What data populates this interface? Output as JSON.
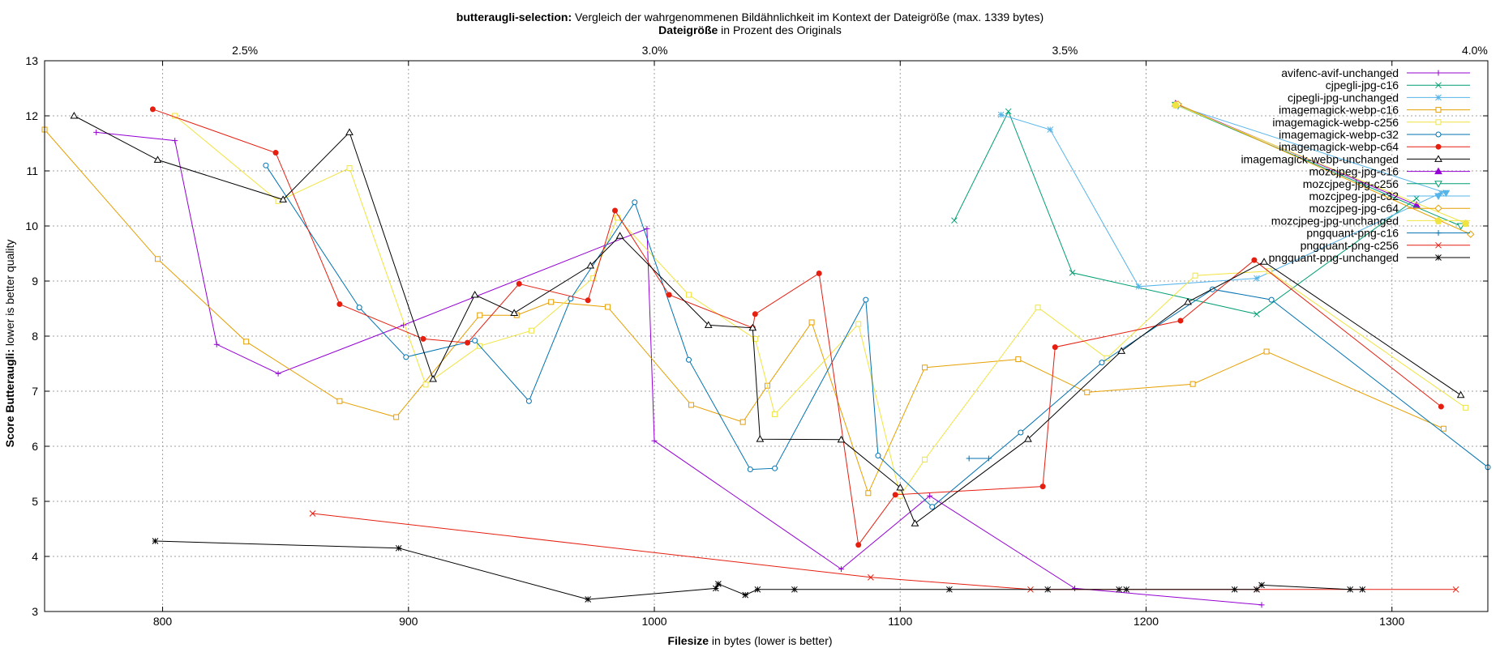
{
  "chart_data": {
    "type": "line",
    "title_bold": "butteraugli-selection:",
    "title_rest": " Vergleich der wahrgenommenen Bildähnlichkeit im Kontext der Dateigröße (max. 1339 bytes)",
    "x2label_bold": "Dateigröße",
    "x2label_rest": " in Prozent des Originals",
    "xlabel_bold": "Filesize",
    "xlabel_rest": " in bytes (lower is better)",
    "ylabel_bold": "Score Butteraugli:",
    "ylabel_rest": " lower is better quality",
    "xlim": [
      752,
      1339
    ],
    "ylim": [
      3,
      13
    ],
    "x_ticks": [
      800,
      900,
      1000,
      1100,
      1200,
      1300
    ],
    "y_ticks": [
      3,
      4,
      5,
      6,
      7,
      8,
      9,
      10,
      11,
      12,
      13
    ],
    "x2_ticks": [
      {
        "label": "2.5%",
        "x": 833.5
      },
      {
        "label": "3.0%",
        "x": 1000.2
      },
      {
        "label": "3.5%",
        "x": 1167
      },
      {
        "label": "4.0%",
        "x": 1333.7
      }
    ],
    "grid": true,
    "legend_position": "top-right",
    "series": [
      {
        "name": "avifenc-avif-unchanged",
        "color": "#9400d3",
        "marker": "plus",
        "points": [
          [
            773,
            11.7
          ],
          [
            805,
            11.55
          ],
          [
            822,
            7.85
          ],
          [
            847,
            7.32
          ],
          [
            898,
            8.2
          ],
          [
            997,
            9.95
          ],
          [
            1000,
            6.1
          ],
          [
            1076,
            3.77
          ],
          [
            1112,
            5.1
          ],
          [
            1171,
            3.42
          ],
          [
            1247,
            3.12
          ]
        ]
      },
      {
        "name": "cjpegli-jpg-c16",
        "color": "#009e73",
        "marker": "cross",
        "points": [
          [
            1122,
            10.1
          ],
          [
            1144,
            12.08
          ],
          [
            1170,
            9.15
          ],
          [
            1245,
            8.4
          ],
          [
            1310,
            10.5
          ]
        ]
      },
      {
        "name": "cjpegli-jpg-unchanged",
        "color": "#56b4e9",
        "marker": "asterisk",
        "points": [
          [
            1141,
            12.02
          ],
          [
            1161,
            11.75
          ],
          [
            1197,
            8.9
          ],
          [
            1245,
            9.05
          ],
          [
            1320,
            10.6
          ]
        ]
      },
      {
        "name": "imagemagick-webp-c16",
        "color": "#e69f00",
        "marker": "square",
        "points": [
          [
            752,
            11.75
          ],
          [
            798,
            9.4
          ],
          [
            834,
            7.9
          ],
          [
            872,
            6.82
          ],
          [
            895,
            6.53
          ],
          [
            929,
            8.38
          ],
          [
            944,
            8.38
          ],
          [
            958,
            8.62
          ],
          [
            981,
            8.53
          ],
          [
            1015,
            6.75
          ],
          [
            1036,
            6.44
          ],
          [
            1046,
            7.1
          ],
          [
            1064,
            8.25
          ],
          [
            1087,
            5.15
          ],
          [
            1110,
            7.43
          ],
          [
            1148,
            7.58
          ],
          [
            1176,
            6.98
          ],
          [
            1219,
            7.13
          ],
          [
            1249,
            7.72
          ],
          [
            1321,
            6.32
          ]
        ]
      },
      {
        "name": "imagemagick-webp-c256",
        "color": "#f0e442",
        "marker": "square",
        "points": [
          [
            805,
            12.0
          ],
          [
            847,
            10.45
          ],
          [
            876,
            11.05
          ],
          [
            907,
            7.12
          ],
          [
            929,
            7.82
          ],
          [
            950,
            8.1
          ],
          [
            975,
            9.05
          ],
          [
            985,
            10.15
          ],
          [
            1014,
            8.75
          ],
          [
            1041,
            7.95
          ],
          [
            1049,
            6.58
          ],
          [
            1083,
            8.22
          ],
          [
            1100,
            5.1
          ],
          [
            1110,
            5.76
          ],
          [
            1156,
            8.52
          ],
          [
            1184,
            7.6
          ],
          [
            1220,
            9.1
          ],
          [
            1250,
            9.18
          ],
          [
            1330,
            6.7
          ]
        ]
      },
      {
        "name": "imagemagick-webp-c32",
        "color": "#0072b2",
        "marker": "circle",
        "points": [
          [
            842,
            11.1
          ],
          [
            880,
            8.52
          ],
          [
            899,
            7.62
          ],
          [
            927,
            7.92
          ],
          [
            949,
            6.82
          ],
          [
            966,
            8.68
          ],
          [
            992,
            10.43
          ],
          [
            1014,
            7.57
          ],
          [
            1039,
            5.58
          ],
          [
            1049,
            5.6
          ],
          [
            1086,
            8.66
          ],
          [
            1091,
            5.83
          ],
          [
            1113,
            4.9
          ],
          [
            1149,
            6.25
          ],
          [
            1182,
            7.52
          ],
          [
            1227,
            8.85
          ],
          [
            1251,
            8.66
          ],
          [
            1339,
            5.62
          ]
        ]
      },
      {
        "name": "imagemagick-webp-c64",
        "color": "#e51e10",
        "marker": "dot",
        "points": [
          [
            796,
            12.12
          ],
          [
            846,
            11.33
          ],
          [
            872,
            8.58
          ],
          [
            906,
            7.95
          ],
          [
            924,
            7.88
          ],
          [
            945,
            8.95
          ],
          [
            973,
            8.65
          ],
          [
            984,
            10.28
          ],
          [
            1006,
            8.75
          ],
          [
            1040,
            8.15
          ],
          [
            1041,
            8.4
          ],
          [
            1067,
            9.14
          ],
          [
            1083,
            4.21
          ],
          [
            1098,
            5.12
          ],
          [
            1158,
            5.27
          ],
          [
            1163,
            7.8
          ],
          [
            1214,
            8.28
          ],
          [
            1244,
            9.38
          ],
          [
            1320,
            6.72
          ]
        ]
      },
      {
        "name": "imagemagick-webp-unchanged",
        "color": "#000000",
        "marker": "triangle",
        "points": [
          [
            764,
            12.0
          ],
          [
            798,
            11.2
          ],
          [
            849,
            10.48
          ],
          [
            876,
            11.7
          ],
          [
            910,
            7.22
          ],
          [
            927,
            8.75
          ],
          [
            943,
            8.42
          ],
          [
            974,
            9.28
          ],
          [
            986,
            9.82
          ],
          [
            1022,
            8.2
          ],
          [
            1040,
            8.15
          ],
          [
            1043,
            6.13
          ],
          [
            1076,
            6.12
          ],
          [
            1100,
            5.25
          ],
          [
            1106,
            4.6
          ],
          [
            1152,
            6.13
          ],
          [
            1190,
            7.73
          ],
          [
            1217,
            8.62
          ],
          [
            1248,
            9.35
          ],
          [
            1328,
            6.93
          ]
        ]
      },
      {
        "name": "mozcjpeg-jpg-c16",
        "color": "#9400d3",
        "marker": "filled-triangle",
        "points": [
          [
            1212,
            12.22
          ],
          [
            1310,
            10.38
          ]
        ]
      },
      {
        "name": "mozcjpeg-jpg-c256",
        "color": "#009e73",
        "marker": "down-triangle",
        "points": [
          [
            1212,
            12.2
          ],
          [
            1328,
            10.0
          ]
        ]
      },
      {
        "name": "mozcjpeg-jpg-c32",
        "color": "#56b4e9",
        "marker": "filled-down-triangle",
        "points": [
          [
            1213,
            12.18
          ],
          [
            1322,
            10.6
          ]
        ]
      },
      {
        "name": "mozcjpeg-jpg-c64",
        "color": "#e69f00",
        "marker": "diamond",
        "points": [
          [
            1213,
            12.21
          ],
          [
            1332,
            9.85
          ]
        ]
      },
      {
        "name": "mozcjpeg-jpg-unchanged",
        "color": "#f0e442",
        "marker": "pentagon",
        "points": [
          [
            1212,
            12.2
          ],
          [
            1330,
            10.05
          ]
        ]
      },
      {
        "name": "pngquant-png-c16",
        "color": "#0072b2",
        "marker": "plus",
        "points": [
          [
            1128,
            5.78
          ],
          [
            1136,
            5.78
          ]
        ]
      },
      {
        "name": "pngquant-png-c256",
        "color": "#e51e10",
        "marker": "cross",
        "points": [
          [
            861,
            4.78
          ],
          [
            1088,
            3.62
          ],
          [
            1153,
            3.4
          ],
          [
            1245,
            3.4
          ],
          [
            1326,
            3.4
          ]
        ]
      },
      {
        "name": "pngquant-png-unchanged",
        "color": "#000000",
        "marker": "asterisk",
        "points": [
          [
            797,
            4.28
          ],
          [
            896,
            4.15
          ],
          [
            973,
            3.22
          ],
          [
            1025,
            3.42
          ],
          [
            1026,
            3.5
          ],
          [
            1037,
            3.3
          ],
          [
            1042,
            3.4
          ],
          [
            1057,
            3.4
          ],
          [
            1120,
            3.4
          ],
          [
            1160,
            3.4
          ],
          [
            1189,
            3.4
          ],
          [
            1192,
            3.4
          ],
          [
            1236,
            3.4
          ],
          [
            1245,
            3.4
          ],
          [
            1247,
            3.48
          ],
          [
            1283,
            3.4
          ],
          [
            1288,
            3.4
          ]
        ]
      }
    ]
  }
}
